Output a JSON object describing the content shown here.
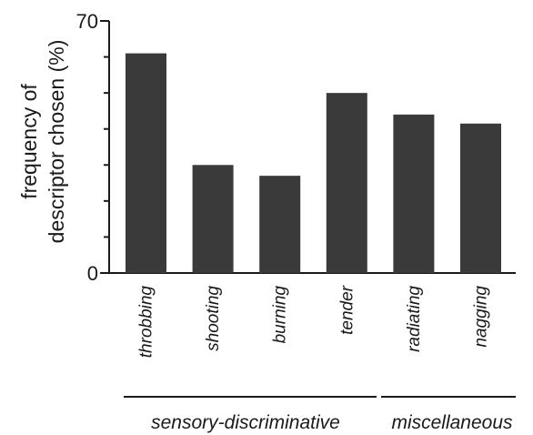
{
  "chart_data": {
    "type": "bar",
    "title": "",
    "ylabel_lines": [
      "frequency of",
      "descriptor chosen (%)"
    ],
    "xlabel": "",
    "ylim": [
      0,
      70
    ],
    "yticks": [
      "0",
      "70"
    ],
    "categories": [
      "throbbing",
      "shooting",
      "burning",
      "tender",
      "radiating",
      "nagging"
    ],
    "values": [
      61,
      30,
      27,
      50,
      44,
      41.5
    ],
    "bar_color": "#3a3a3a",
    "groups": [
      {
        "label": "sensory-discriminative",
        "start": 0,
        "end": 3
      },
      {
        "label": "miscellaneous",
        "start": 4,
        "end": 5
      }
    ],
    "grid": false
  }
}
